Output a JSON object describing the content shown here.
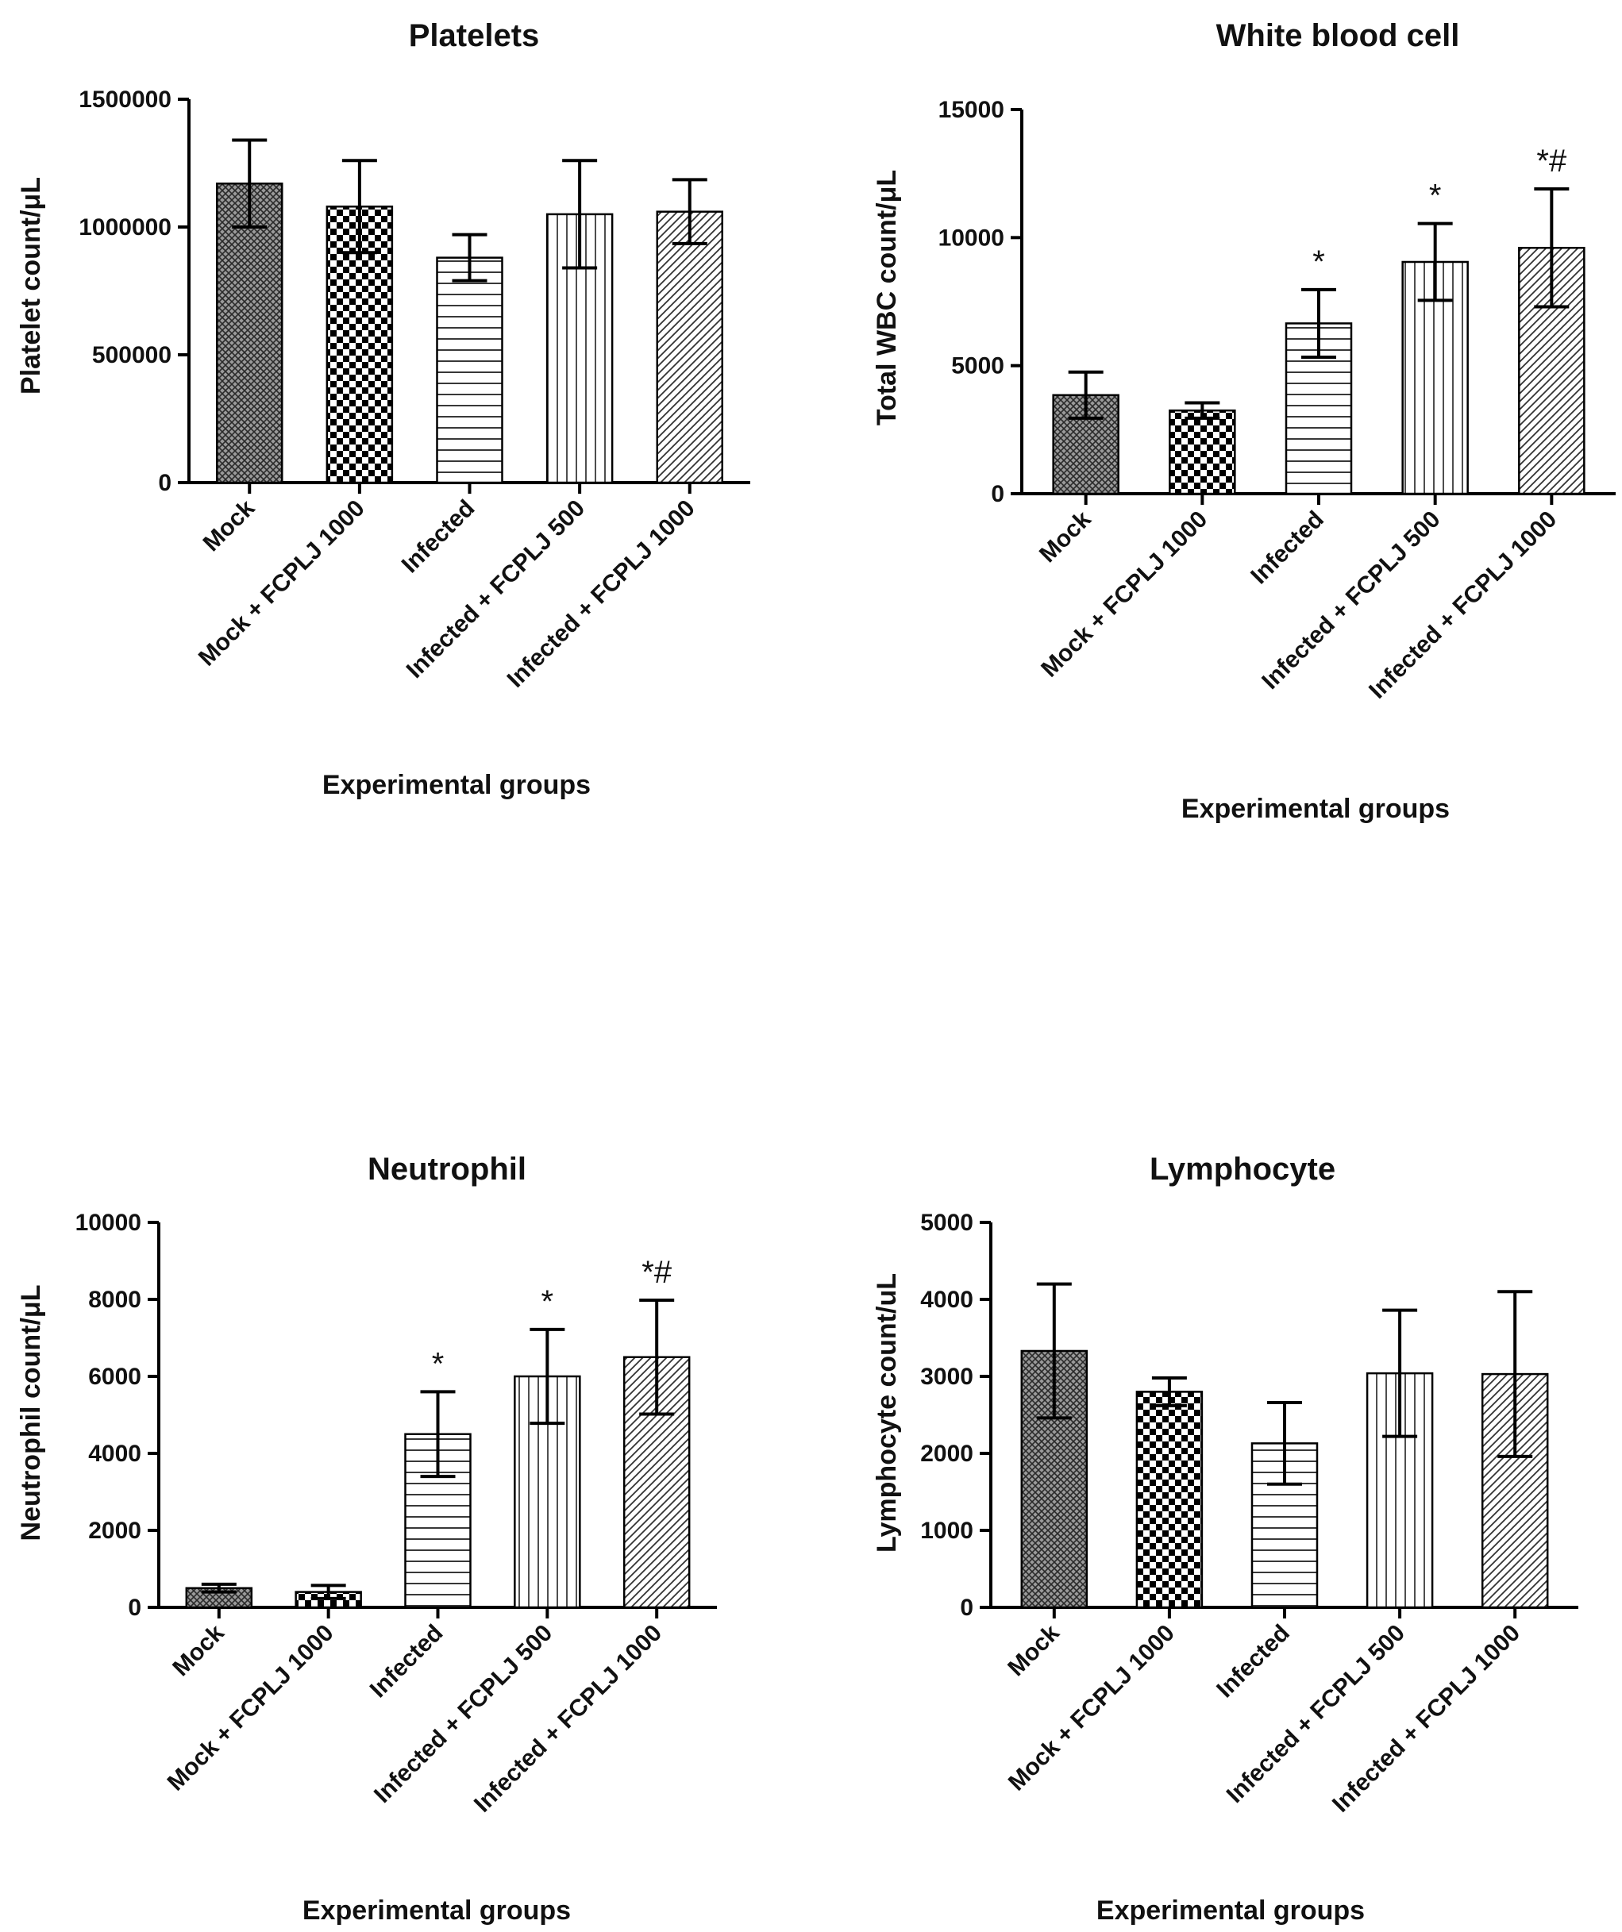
{
  "chart_data": [
    {
      "type": "bar",
      "title": "Platelets",
      "ylabel": "Platelet count/μL",
      "xlabel": "Experimental groups",
      "ylim": [
        0,
        1500000
      ],
      "yticks": [
        0,
        500000,
        1000000,
        1500000
      ],
      "ytick_labels": [
        "0",
        "500000",
        "1000000",
        "1500000"
      ],
      "categories": [
        "Mock",
        "Mock + FCPLJ 1000",
        "Infected",
        "Infected + FCPLJ 500",
        "Infected + FCPLJ 1000"
      ],
      "values": [
        1170000,
        1080000,
        880000,
        1050000,
        1060000
      ],
      "errors": [
        170000,
        180000,
        90000,
        210000,
        125000
      ],
      "annotations": [
        "",
        "",
        "",
        "",
        ""
      ],
      "patterns": [
        "crosshatch",
        "checker",
        "hlines",
        "vlines",
        "diag"
      ]
    },
    {
      "type": "bar",
      "title": "White blood cell",
      "ylabel": "Total WBC count/μL",
      "xlabel": "Experimental groups",
      "ylim": [
        0,
        15000
      ],
      "yticks": [
        0,
        5000,
        10000,
        15000
      ],
      "ytick_labels": [
        "0",
        "5000",
        "10000",
        "15000"
      ],
      "categories": [
        "Mock",
        "Mock + FCPLJ 1000",
        "Infected",
        "Infected + FCPLJ 500",
        "Infected + FCPLJ 1000"
      ],
      "values": [
        3850,
        3250,
        6650,
        9050,
        9600
      ],
      "errors": [
        900,
        300,
        1320,
        1500,
        2300
      ],
      "annotations": [
        "",
        "",
        "*",
        "*",
        "*#"
      ],
      "patterns": [
        "crosshatch",
        "checker",
        "hlines",
        "vlines",
        "diag"
      ]
    },
    {
      "type": "bar",
      "title": "Neutrophil",
      "ylabel": "Neutrophil count/μL",
      "xlabel": "Experimental groups",
      "ylim": [
        0,
        10000
      ],
      "yticks": [
        0,
        2000,
        4000,
        6000,
        8000,
        10000
      ],
      "ytick_labels": [
        "0",
        "2000",
        "4000",
        "6000",
        "8000",
        "10000"
      ],
      "categories": [
        "Mock",
        "Mock + FCPLJ 1000",
        "Infected",
        "Infected + FCPLJ 500",
        "Infected + FCPLJ 1000"
      ],
      "values": [
        500,
        400,
        4500,
        6000,
        6500
      ],
      "errors": [
        100,
        170,
        1100,
        1220,
        1480
      ],
      "annotations": [
        "",
        "",
        "*",
        "*",
        "*#"
      ],
      "patterns": [
        "crosshatch",
        "checker",
        "hlines",
        "vlines",
        "diag"
      ]
    },
    {
      "type": "bar",
      "title": "Lymphocyte",
      "ylabel": "Lymphocyte count/uL",
      "xlabel": "Experimental groups",
      "ylim": [
        0,
        5000
      ],
      "yticks": [
        0,
        1000,
        2000,
        3000,
        4000,
        5000
      ],
      "ytick_labels": [
        "0",
        "1000",
        "2000",
        "3000",
        "4000",
        "5000"
      ],
      "categories": [
        "Mock",
        "Mock + FCPLJ 1000",
        "Infected",
        "Infected + FCPLJ 500",
        "Infected + FCPLJ 1000"
      ],
      "values": [
        3330,
        2800,
        2130,
        3040,
        3030
      ],
      "errors": [
        870,
        180,
        530,
        820,
        1070
      ],
      "annotations": [
        "",
        "",
        "",
        "",
        ""
      ],
      "patterns": [
        "crosshatch",
        "checker",
        "hlines",
        "vlines",
        "diag"
      ]
    }
  ]
}
